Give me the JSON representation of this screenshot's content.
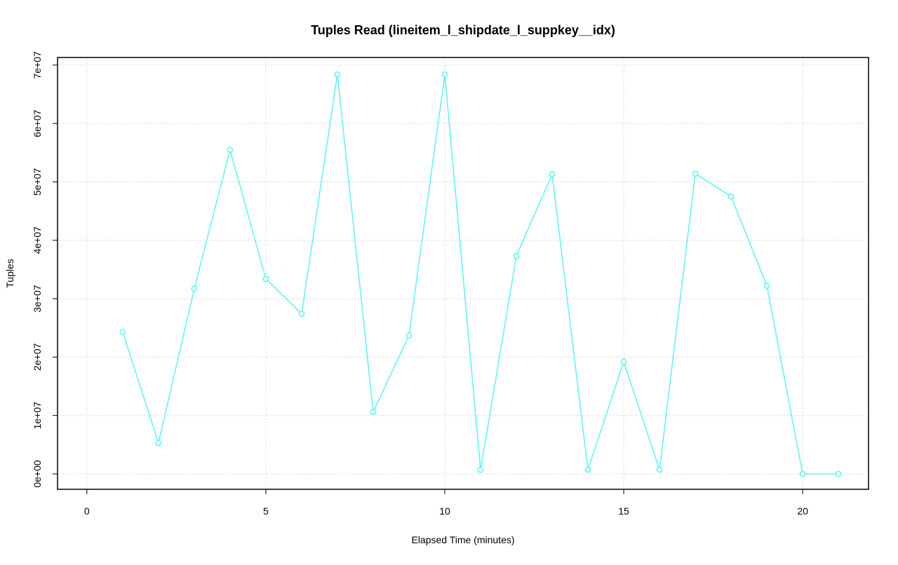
{
  "chart_data": {
    "type": "line",
    "title": "Tuples Read (lineitem_l_shipdate_l_suppkey__idx)",
    "x_label": "Elapsed Time (minutes)",
    "y_label": "Tuples",
    "x": [
      1,
      2,
      3,
      4,
      5,
      6,
      7,
      8,
      9,
      10,
      11,
      12,
      13,
      14,
      15,
      16,
      17,
      18,
      19,
      20,
      21
    ],
    "series": [
      {
        "name": "Tuples",
        "color": "#5ff5f5",
        "values": [
          24300000,
          5300000,
          31700000,
          55500000,
          33400000,
          27400000,
          68400000,
          10600000,
          23700000,
          68400000,
          700000,
          37300000,
          51300000,
          700000,
          19200000,
          700000,
          51400000,
          47500000,
          32200000,
          0,
          0
        ]
      }
    ],
    "xlim": [
      -0.82,
      21.84
    ],
    "xticks": [
      0,
      5,
      10,
      15,
      20
    ],
    "ylim": [
      -2640000,
      71300000
    ],
    "yticks": [
      {
        "value": 0,
        "label": "0e+00"
      },
      {
        "value": 10000000,
        "label": "1e+07"
      },
      {
        "value": 20000000,
        "label": "2e+07"
      },
      {
        "value": 30000000,
        "label": "3e+07"
      },
      {
        "value": 40000000,
        "label": "4e+07"
      },
      {
        "value": 50000000,
        "label": "5e+07"
      },
      {
        "value": 60000000,
        "label": "6e+07"
      },
      {
        "value": 70000000,
        "label": "7e+07"
      }
    ],
    "grid": true
  }
}
